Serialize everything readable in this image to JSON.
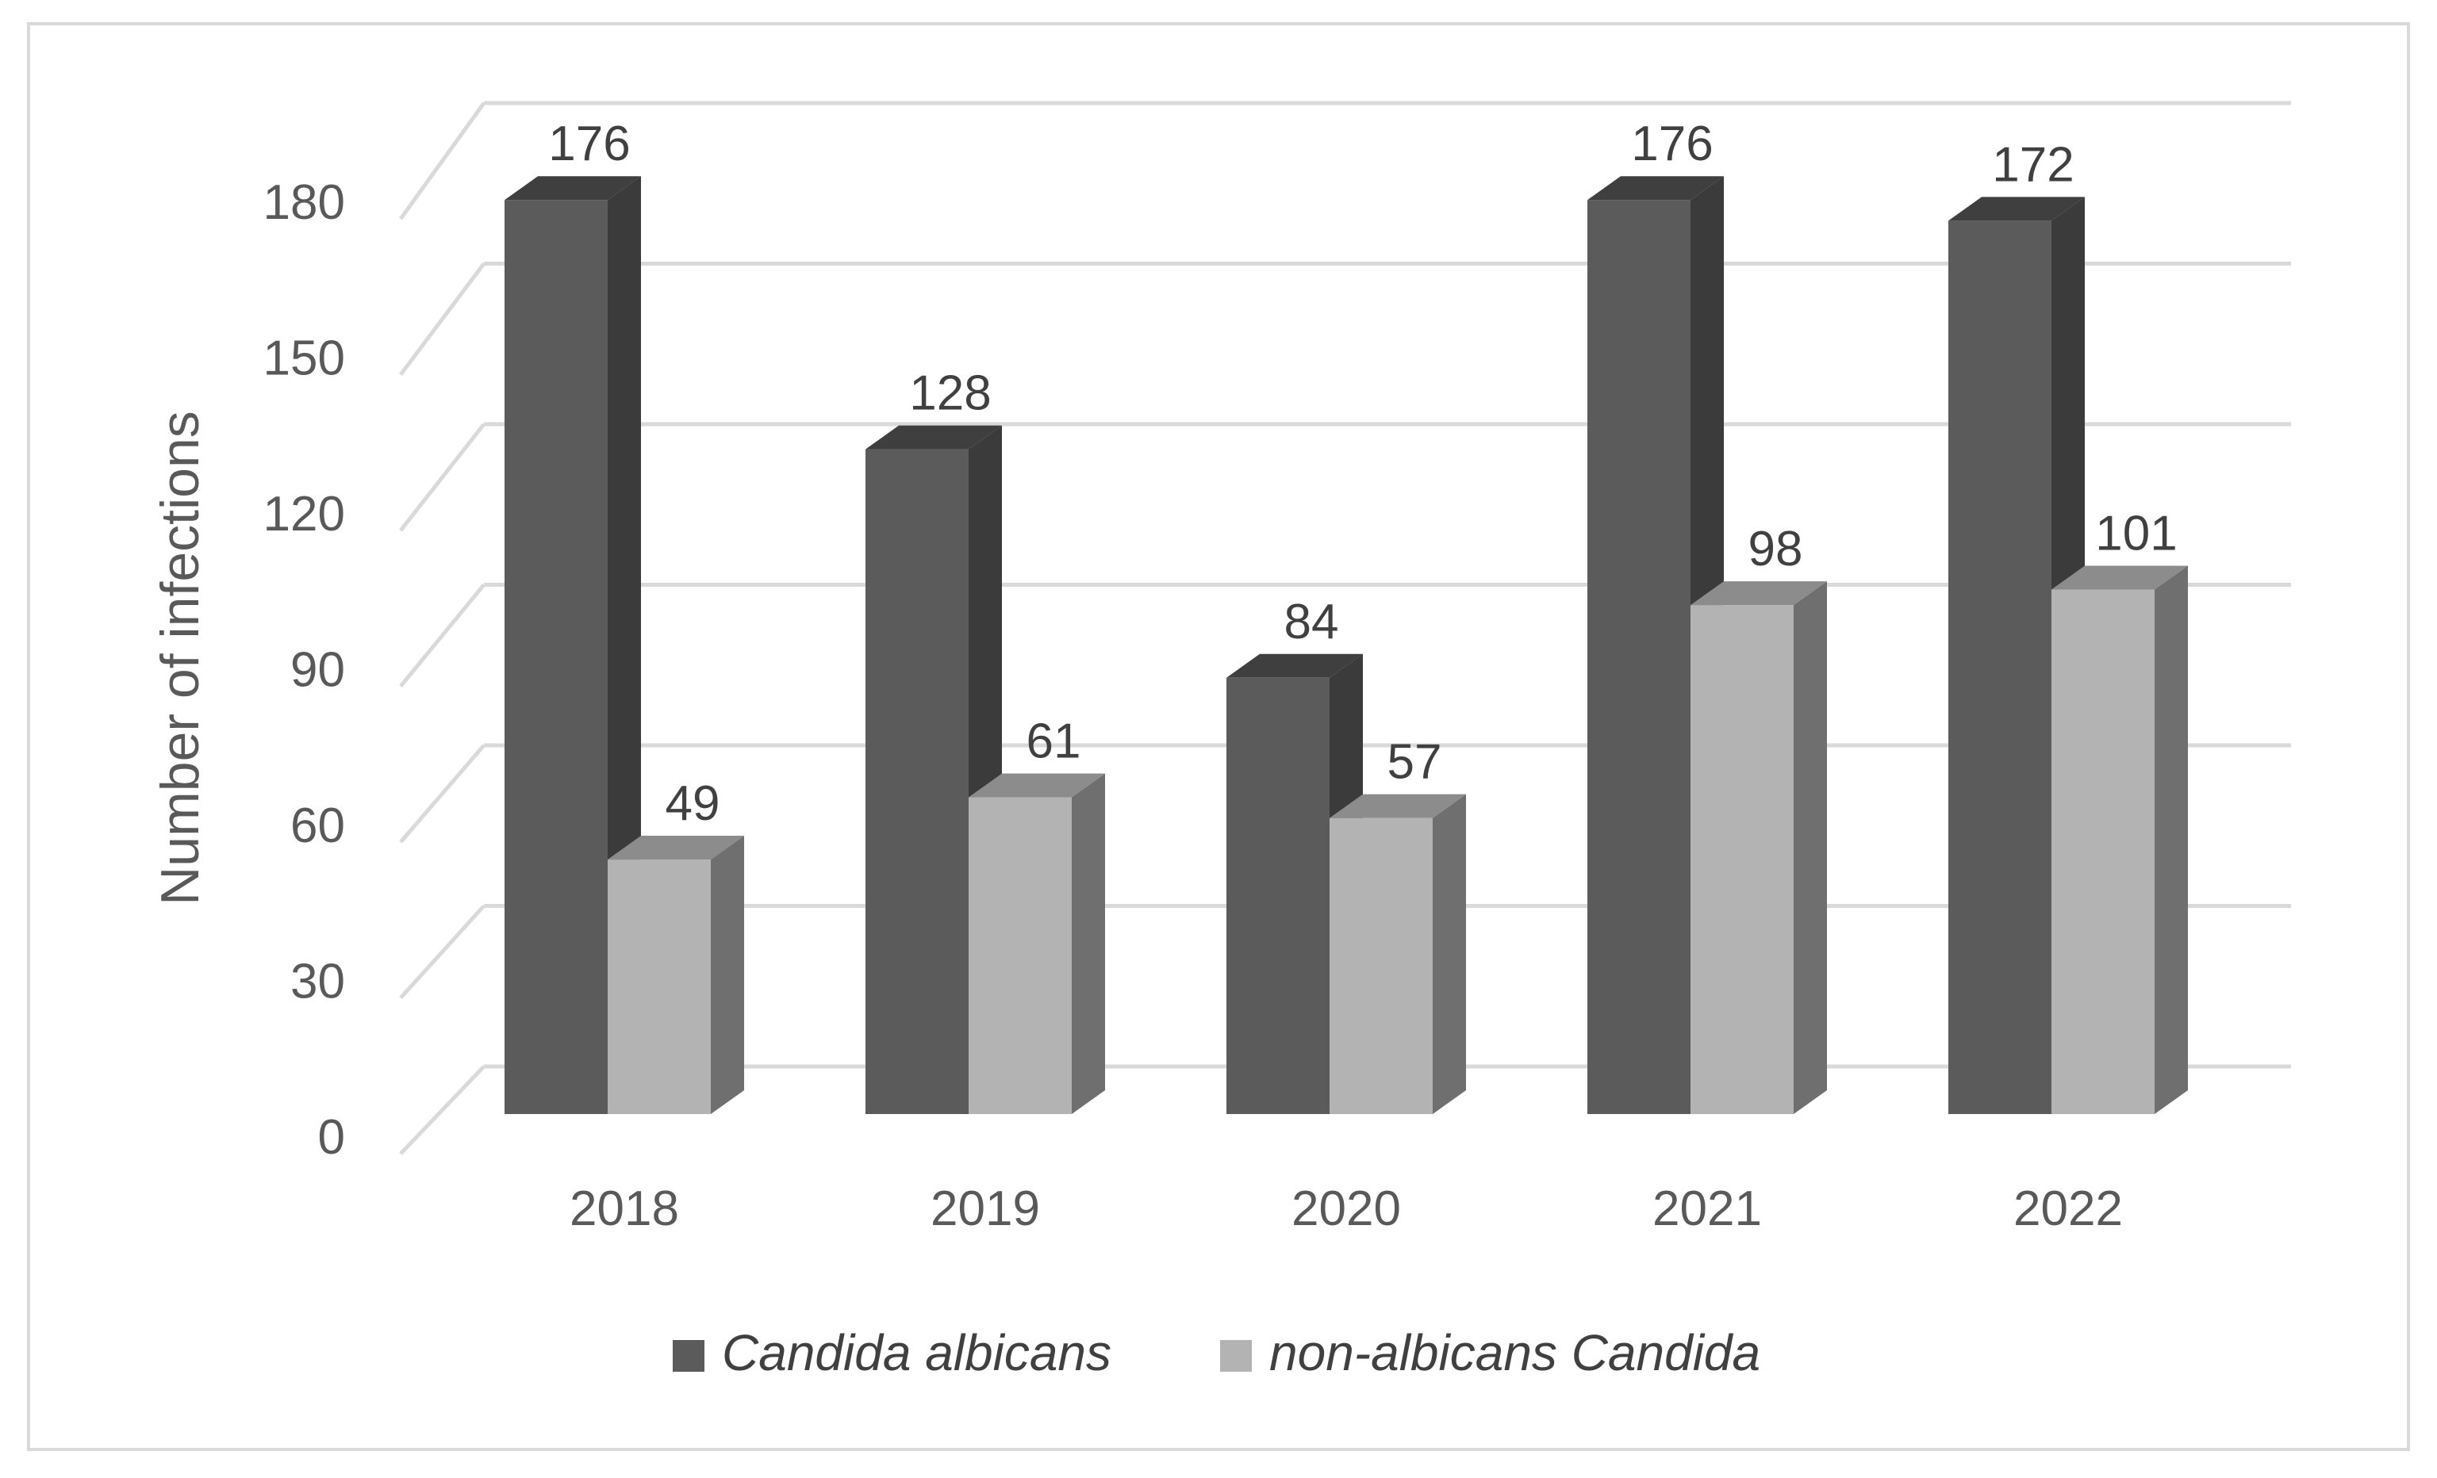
{
  "chart_data": {
    "type": "bar",
    "style": "3d-clustered-column",
    "categories": [
      "2018",
      "2019",
      "2020",
      "2021",
      "2022"
    ],
    "series": [
      {
        "name": "Candida albicans",
        "values": [
          176,
          128,
          84,
          176,
          172
        ],
        "color": "#5b5b5b",
        "side_color": "#3b3b3b",
        "top_color": "#3f3f3f"
      },
      {
        "name": "non-albicans Candida",
        "values": [
          49,
          61,
          57,
          98,
          101
        ],
        "color": "#b3b3b3",
        "side_color": "#6f6f6f",
        "top_color": "#8c8c8c"
      }
    ],
    "title": "",
    "xlabel": "",
    "ylabel": "Number of infections",
    "ylim": [
      0,
      180
    ],
    "yticks": [
      0,
      30,
      60,
      90,
      120,
      150,
      180
    ],
    "grid": true,
    "legend_position": "bottom",
    "data_labels": true
  }
}
